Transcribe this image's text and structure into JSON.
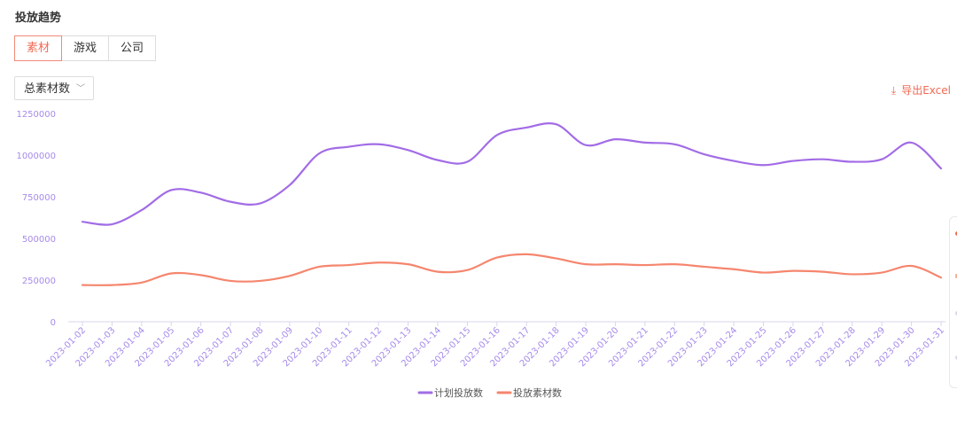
{
  "header": {
    "title": "投放趋势"
  },
  "tabs": [
    {
      "label": "素材",
      "active": true
    },
    {
      "label": "游戏",
      "active": false
    },
    {
      "label": "公司",
      "active": false
    }
  ],
  "filter": {
    "selected": "总素材数"
  },
  "actions": {
    "export_label": "导出Excel"
  },
  "colors": {
    "accent": "#f06a55",
    "series_plan": "#a26ce6",
    "series_material": "#f5866e",
    "axis_text": "#a78bea"
  },
  "chart_data": {
    "type": "line",
    "title": "",
    "xlabel": "",
    "ylabel": "",
    "ylim": [
      0,
      1250000
    ],
    "yticks": [
      "0",
      "250000",
      "500000",
      "750000",
      "1000000",
      "1250000"
    ],
    "ytick_values": [
      0,
      250000,
      500000,
      750000,
      1000000,
      1250000
    ],
    "categories": [
      "2023-01-02",
      "2023-01-03",
      "2023-01-04",
      "2023-01-05",
      "2023-01-06",
      "2023-01-07",
      "2023-01-08",
      "2023-01-09",
      "2023-01-10",
      "2023-01-11",
      "2023-01-12",
      "2023-01-13",
      "2023-01-14",
      "2023-01-15",
      "2023-01-16",
      "2023-01-17",
      "2023-01-18",
      "2023-01-19",
      "2023-01-20",
      "2023-01-21",
      "2023-01-22",
      "2023-01-23",
      "2023-01-24",
      "2023-01-25",
      "2023-01-26",
      "2023-01-27",
      "2023-01-28",
      "2023-01-29",
      "2023-01-30",
      "2023-01-31"
    ],
    "series": [
      {
        "name": "计划投放数",
        "color": "#a26ce6",
        "values": [
          600000,
          585000,
          670000,
          790000,
          775000,
          720000,
          710000,
          820000,
          1010000,
          1050000,
          1065000,
          1030000,
          970000,
          960000,
          1120000,
          1165000,
          1185000,
          1060000,
          1095000,
          1075000,
          1065000,
          1005000,
          965000,
          940000,
          965000,
          975000,
          960000,
          975000,
          1075000,
          920000
        ]
      },
      {
        "name": "投放素材数",
        "color": "#f5866e",
        "values": [
          220000,
          220000,
          235000,
          290000,
          280000,
          245000,
          245000,
          275000,
          330000,
          340000,
          355000,
          345000,
          300000,
          310000,
          385000,
          405000,
          380000,
          345000,
          345000,
          340000,
          345000,
          330000,
          315000,
          295000,
          305000,
          300000,
          285000,
          295000,
          335000,
          265000
        ]
      }
    ],
    "legend_position": "bottom-center",
    "grid": false
  }
}
